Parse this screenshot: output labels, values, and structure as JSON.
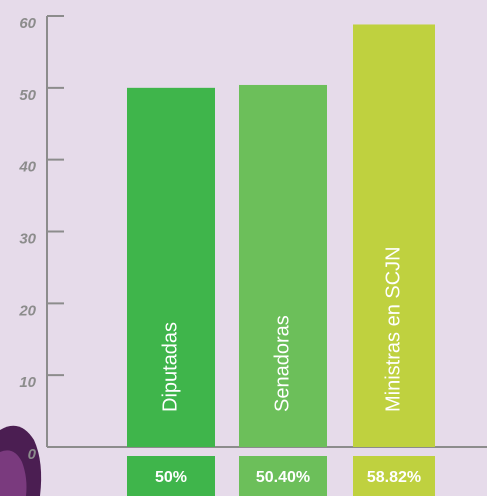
{
  "chart_data": {
    "type": "bar",
    "categories": [
      "Diputadas",
      "Senadoras",
      "Ministras en SCJN"
    ],
    "values": [
      50,
      50.4,
      58.82
    ],
    "value_labels": [
      "50%",
      "50.40%",
      "58.82%"
    ],
    "colors": [
      "#3fb54b",
      "#6cbf5a",
      "#bfd13f"
    ],
    "ylim": [
      0,
      60
    ],
    "yticks": [
      0,
      10,
      20,
      30,
      40,
      50,
      60
    ]
  }
}
